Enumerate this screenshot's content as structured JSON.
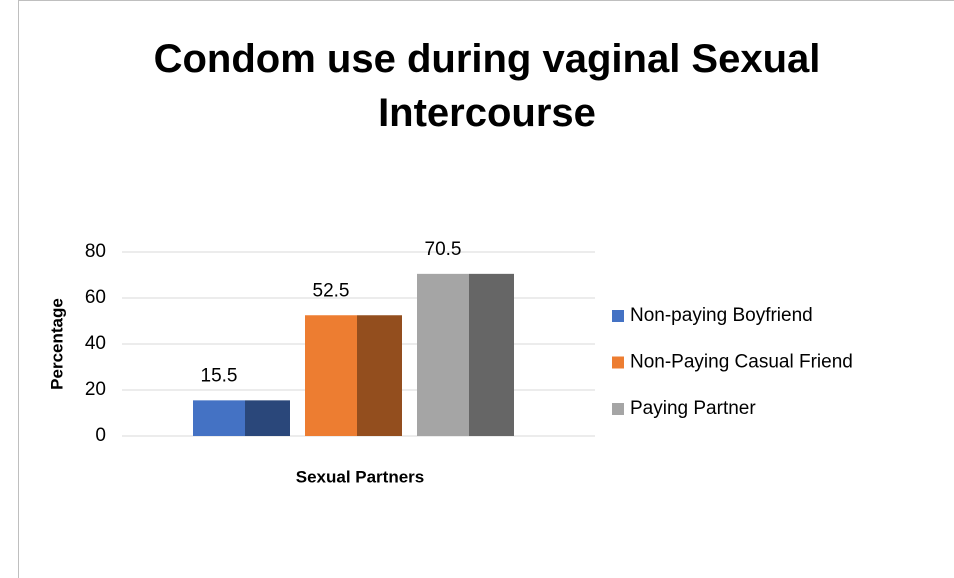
{
  "chart_data": {
    "type": "bar",
    "title": "Condom use during vaginal Sexual Intercourse",
    "x_label": "Sexual Partners",
    "y_label": "Percentage",
    "categories": [
      null
    ],
    "series": [
      {
        "name": "Non-paying Boyfriend",
        "color": "#4472c4",
        "values": [
          15.5
        ]
      },
      {
        "name": "Non-Paying Casual Friend",
        "color": "#ed7d31",
        "values": [
          52.5
        ]
      },
      {
        "name": "Paying Partner",
        "color": "#a5a5a5",
        "values": [
          70.5
        ]
      }
    ],
    "ylim": [
      0,
      80
    ],
    "yticks": [
      0,
      20,
      40,
      60,
      80
    ],
    "grid": true,
    "legend": "right"
  }
}
